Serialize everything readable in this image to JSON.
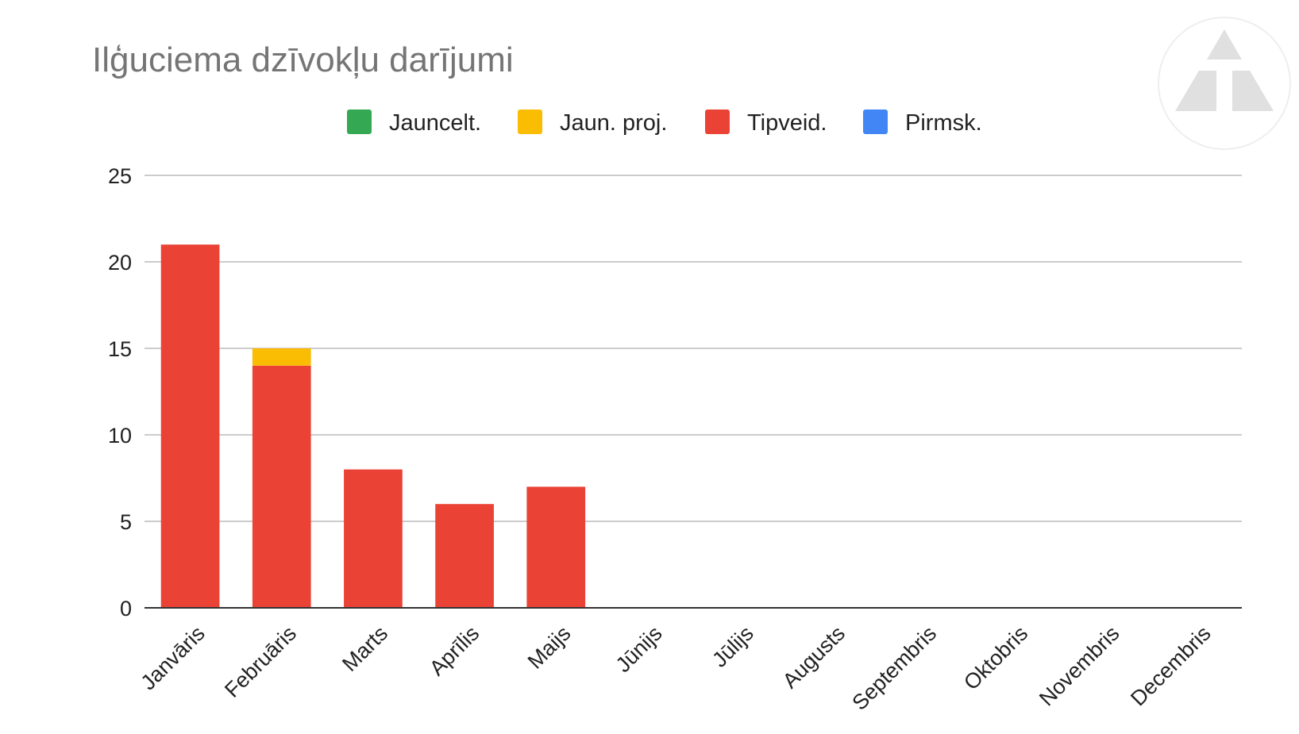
{
  "chart_data": {
    "type": "bar",
    "stacked": true,
    "title": "Ilģuciema dzīvokļu darījumi",
    "categories": [
      "Janvāris",
      "Februāris",
      "Marts",
      "Aprīlis",
      "Maijs",
      "Jūnijs",
      "Jūlijs",
      "Augusts",
      "Septembris",
      "Oktobris",
      "Novembris",
      "Decembris"
    ],
    "series": [
      {
        "name": "Jauncelt.",
        "color": "#34a853",
        "values": [
          0,
          0,
          0,
          0,
          0,
          0,
          0,
          0,
          0,
          0,
          0,
          0
        ]
      },
      {
        "name": "Jaun. proj.",
        "color": "#fbbc04",
        "values": [
          0,
          1,
          0,
          0,
          0,
          0,
          0,
          0,
          0,
          0,
          0,
          0
        ]
      },
      {
        "name": "Tipveid.",
        "color": "#ea4335",
        "values": [
          21,
          14,
          8,
          6,
          7,
          0,
          0,
          0,
          0,
          0,
          0,
          0
        ]
      },
      {
        "name": "Pirmsk.",
        "color": "#4285f4",
        "values": [
          0,
          0,
          0,
          0,
          0,
          0,
          0,
          0,
          0,
          0,
          0,
          0
        ]
      }
    ],
    "stack_order": [
      "Tipveid.",
      "Jaun. proj.",
      "Jauncelt.",
      "Pirmsk."
    ],
    "ylim": [
      0,
      25
    ],
    "yticks": [
      0,
      5,
      10,
      15,
      20,
      25
    ],
    "xlabel": "",
    "ylabel": "",
    "grid": true,
    "legend_position": "top"
  },
  "logo": {
    "name": "triangle-logo"
  }
}
